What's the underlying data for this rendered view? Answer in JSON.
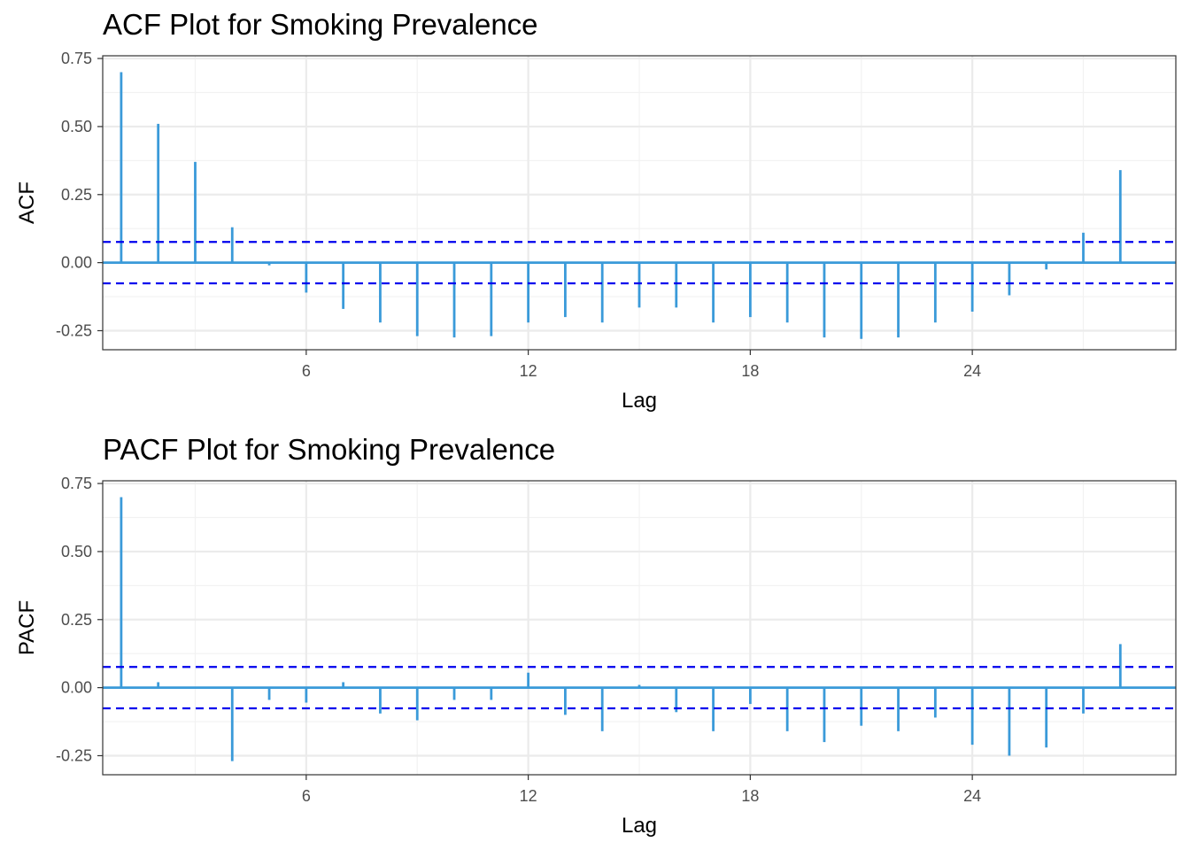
{
  "chart_data": [
    {
      "type": "bar",
      "title": "ACF Plot for Smoking Prevalence",
      "xlabel": "Lag",
      "ylabel": "ACF",
      "xlim": [
        0.5,
        29.5
      ],
      "ylim": [
        -0.32,
        0.76
      ],
      "x_ticks": [
        "6",
        "12",
        "18",
        "24"
      ],
      "y_ticks": [
        "0.75",
        "0.50",
        "0.25",
        "0.00",
        "-0.25"
      ],
      "grid": true,
      "confidence_bound": 0.076,
      "bar_color": "#3a9ad9",
      "bound_color": "#0000ee",
      "lags": [
        1,
        2,
        3,
        4,
        5,
        6,
        7,
        8,
        9,
        10,
        11,
        12,
        13,
        14,
        15,
        16,
        17,
        18,
        19,
        20,
        21,
        22,
        23,
        24,
        25,
        26,
        27,
        28
      ],
      "values": [
        0.7,
        0.51,
        0.37,
        0.13,
        -0.01,
        -0.11,
        -0.17,
        -0.22,
        -0.27,
        -0.275,
        -0.27,
        -0.22,
        -0.2,
        -0.22,
        -0.165,
        -0.165,
        -0.22,
        -0.2,
        -0.22,
        -0.275,
        -0.28,
        -0.275,
        -0.22,
        -0.18,
        -0.12,
        -0.025,
        0.11,
        0.34
      ]
    },
    {
      "type": "bar",
      "title": "PACF Plot for Smoking Prevalence",
      "xlabel": "Lag",
      "ylabel": "PACF",
      "xlim": [
        0.5,
        29.5
      ],
      "ylim": [
        -0.32,
        0.76
      ],
      "x_ticks": [
        "6",
        "12",
        "18",
        "24"
      ],
      "y_ticks": [
        "0.75",
        "0.50",
        "0.25",
        "0.00",
        "-0.25"
      ],
      "grid": true,
      "confidence_bound": 0.076,
      "bar_color": "#3a9ad9",
      "bound_color": "#0000ee",
      "lags": [
        1,
        2,
        3,
        4,
        5,
        6,
        7,
        8,
        9,
        10,
        11,
        12,
        13,
        14,
        15,
        16,
        17,
        18,
        19,
        20,
        21,
        22,
        23,
        24,
        25,
        26,
        27,
        28
      ],
      "values": [
        0.7,
        0.02,
        0.0,
        -0.27,
        -0.045,
        -0.055,
        0.02,
        -0.095,
        -0.12,
        -0.045,
        -0.045,
        0.055,
        -0.1,
        -0.16,
        0.01,
        -0.09,
        -0.16,
        -0.06,
        -0.16,
        -0.2,
        -0.14,
        -0.16,
        -0.11,
        -0.21,
        -0.25,
        -0.22,
        -0.095,
        0.16
      ]
    }
  ]
}
